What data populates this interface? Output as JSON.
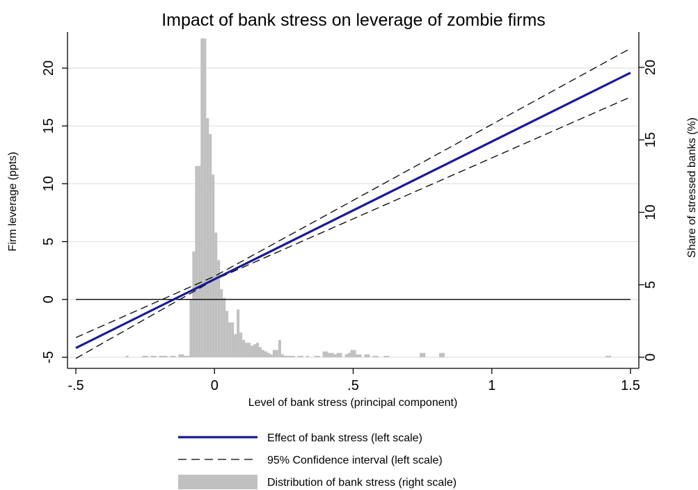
{
  "chart_data": {
    "type": "line",
    "title": "Impact of bank stress on leverage of zombie firms",
    "xlabel": "Level of bank stress (principal component)",
    "ylabel_left": "Firm leverage (ppts)",
    "ylabel_right": "Share of stressed banks (%)",
    "xlim": [
      -0.5,
      1.5
    ],
    "ylim_left": [
      -5,
      22
    ],
    "ylim_right": [
      0,
      22
    ],
    "x_ticks": [
      -0.5,
      0,
      0.5,
      1,
      1.5
    ],
    "x_tick_labels": [
      "-.5",
      "0",
      ".5",
      "1",
      "1.5"
    ],
    "y_left_ticks": [
      -5,
      0,
      5,
      10,
      15,
      20
    ],
    "y_left_tick_labels": [
      "-5",
      "0",
      "5",
      "10",
      "15",
      "20"
    ],
    "y_right_ticks": [
      0,
      5,
      10,
      15,
      20
    ],
    "y_right_tick_labels": [
      "0",
      "5",
      "10",
      "15",
      "20"
    ],
    "grid": true,
    "legend_position": "bottom",
    "legend": [
      {
        "label": "Effect of bank stress (left scale)",
        "style": "solid",
        "color": "#1a1a96"
      },
      {
        "label": "95% Confidence interval (left scale)",
        "style": "dashed",
        "color": "#000000"
      },
      {
        "label": "Distribution of bank stress (right scale)",
        "style": "bar",
        "color": "#c0c0c0"
      }
    ],
    "series": [
      {
        "name": "Effect of bank stress (left scale)",
        "axis": "left",
        "x": [
          -0.5,
          1.5
        ],
        "values": [
          -4.2,
          19.6
        ]
      },
      {
        "name": "95% Confidence interval (left scale)",
        "axis": "left",
        "x": [
          -0.5,
          0,
          1.5
        ],
        "values": [
          -3.3,
          2.0,
          21.7
        ]
      },
      {
        "name": "95% Confidence interval (left scale)",
        "axis": "left",
        "x": [
          -0.5,
          0,
          1.5
        ],
        "values": [
          -5.1,
          1.7,
          17.5
        ]
      }
    ],
    "reference_line": {
      "axis": "left",
      "y": 0
    },
    "histogram": {
      "name": "Distribution of bank stress (right scale)",
      "axis": "right",
      "bin_width": 0.01,
      "bins": [
        {
          "x": -0.32,
          "value": 0.1
        },
        {
          "x": -0.26,
          "value": 0.1
        },
        {
          "x": -0.25,
          "value": 0.1
        },
        {
          "x": -0.23,
          "value": 0.1
        },
        {
          "x": -0.22,
          "value": 0.1
        },
        {
          "x": -0.2,
          "value": 0.1
        },
        {
          "x": -0.19,
          "value": 0.1
        },
        {
          "x": -0.18,
          "value": 0.1
        },
        {
          "x": -0.16,
          "value": 0.1
        },
        {
          "x": -0.15,
          "value": 0.1
        },
        {
          "x": -0.13,
          "value": 0.2
        },
        {
          "x": -0.12,
          "value": 0.2
        },
        {
          "x": -0.11,
          "value": 0.1
        },
        {
          "x": -0.1,
          "value": 0.1
        },
        {
          "x": -0.09,
          "value": 4.0
        },
        {
          "x": -0.08,
          "value": 7.3
        },
        {
          "x": -0.07,
          "value": 13.2
        },
        {
          "x": -0.06,
          "value": 13.2
        },
        {
          "x": -0.05,
          "value": 22.0
        },
        {
          "x": -0.04,
          "value": 22.0
        },
        {
          "x": -0.03,
          "value": 16.5
        },
        {
          "x": -0.02,
          "value": 15.4
        },
        {
          "x": -0.01,
          "value": 12.6
        },
        {
          "x": 0.0,
          "value": 8.6
        },
        {
          "x": 0.01,
          "value": 6.7
        },
        {
          "x": 0.02,
          "value": 4.7
        },
        {
          "x": 0.03,
          "value": 4.1
        },
        {
          "x": 0.04,
          "value": 3.2
        },
        {
          "x": 0.05,
          "value": 2.4
        },
        {
          "x": 0.06,
          "value": 2.4
        },
        {
          "x": 0.07,
          "value": 1.6
        },
        {
          "x": 0.08,
          "value": 3.3
        },
        {
          "x": 0.09,
          "value": 1.7
        },
        {
          "x": 0.1,
          "value": 1.2
        },
        {
          "x": 0.11,
          "value": 1.0
        },
        {
          "x": 0.12,
          "value": 1.0
        },
        {
          "x": 0.13,
          "value": 0.8
        },
        {
          "x": 0.14,
          "value": 0.9
        },
        {
          "x": 0.15,
          "value": 1.0
        },
        {
          "x": 0.16,
          "value": 0.7
        },
        {
          "x": 0.17,
          "value": 0.5
        },
        {
          "x": 0.18,
          "value": 0.4
        },
        {
          "x": 0.19,
          "value": 0.3
        },
        {
          "x": 0.2,
          "value": 0.2
        },
        {
          "x": 0.21,
          "value": 0.5
        },
        {
          "x": 0.22,
          "value": 0.5
        },
        {
          "x": 0.23,
          "value": 1.2
        },
        {
          "x": 0.24,
          "value": 0.2
        },
        {
          "x": 0.25,
          "value": 0.1
        },
        {
          "x": 0.26,
          "value": 0.1
        },
        {
          "x": 0.27,
          "value": 0.1
        },
        {
          "x": 0.28,
          "value": 0.1
        },
        {
          "x": 0.3,
          "value": 0.1
        },
        {
          "x": 0.31,
          "value": 0.1
        },
        {
          "x": 0.33,
          "value": 0.1
        },
        {
          "x": 0.36,
          "value": 0.1
        },
        {
          "x": 0.37,
          "value": 0.1
        },
        {
          "x": 0.39,
          "value": 0.4
        },
        {
          "x": 0.4,
          "value": 0.4
        },
        {
          "x": 0.41,
          "value": 0.3
        },
        {
          "x": 0.42,
          "value": 0.3
        },
        {
          "x": 0.43,
          "value": 0.2
        },
        {
          "x": 0.44,
          "value": 0.3
        },
        {
          "x": 0.45,
          "value": 0.3
        },
        {
          "x": 0.47,
          "value": 0.2
        },
        {
          "x": 0.48,
          "value": 0.3
        },
        {
          "x": 0.49,
          "value": 0.5
        },
        {
          "x": 0.5,
          "value": 0.5
        },
        {
          "x": 0.51,
          "value": 0.2
        },
        {
          "x": 0.52,
          "value": 0.2
        },
        {
          "x": 0.54,
          "value": 0.2
        },
        {
          "x": 0.55,
          "value": 0.2
        },
        {
          "x": 0.57,
          "value": 0.1
        },
        {
          "x": 0.58,
          "value": 0.1
        },
        {
          "x": 0.61,
          "value": 0.1
        },
        {
          "x": 0.62,
          "value": 0.1
        },
        {
          "x": 0.74,
          "value": 0.3
        },
        {
          "x": 0.75,
          "value": 0.3
        },
        {
          "x": 0.81,
          "value": 0.3
        },
        {
          "x": 0.82,
          "value": 0.3
        },
        {
          "x": 1.41,
          "value": 0.1
        },
        {
          "x": 1.42,
          "value": 0.1
        }
      ]
    }
  }
}
